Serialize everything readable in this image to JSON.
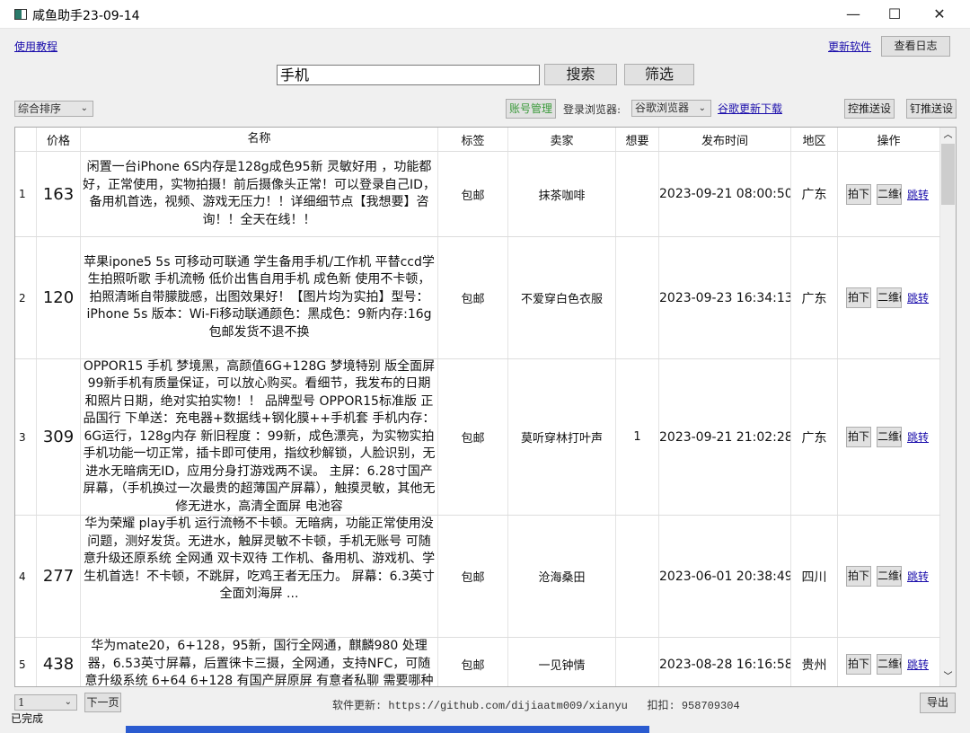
{
  "window": {
    "title": "咸鱼助手23-09-14",
    "minimize": "—",
    "maximize": "☐",
    "close": "✕"
  },
  "toolbar": {
    "tutorial_link": "使用教程",
    "update_link": "更新软件",
    "view_log": "查看日志",
    "search_value": "手机",
    "search_button": "搜索",
    "filter_button": "筛选",
    "sort_select": "综合排序",
    "account_button": "账号管理",
    "browser_label": "登录浏览器:",
    "browser_select": "谷歌浏览器",
    "chrome_link": "谷歌更新下载",
    "push_settings_1": "控推送设",
    "push_settings_2": "钉推送设"
  },
  "table": {
    "headers": [
      "",
      "价格",
      "名称",
      "标签",
      "卖家",
      "想要",
      "发布时间",
      "地区",
      "操作"
    ],
    "action_labels": {
      "buy": "拍下",
      "qr": "二维码",
      "jump": "跳转"
    },
    "rows": [
      {
        "index": "1",
        "price": "163",
        "name": "闲置一台iPhone 6S内存是128g成色95新 灵敏好用 ，功能都好，正常使用，实物拍摄！前后摄像头正常！可以登录自己ID，备用机首选，视频、游戏无压力！！详细细节点【我想要】咨询！！全天在线！！",
        "tag": "包邮",
        "seller": "抹茶咖啡",
        "want": "",
        "time": "2023-09-21 08:00:50",
        "region": "广东"
      },
      {
        "index": "2",
        "price": "120",
        "name": "苹果ipone5 5s 可移动可联通 学生备用手机/工作机 平替ccd学生拍照听歌  手机流畅  低价出售自用手机  成色新 使用不卡顿，拍照清晰自带朦胧感，出图效果好！【图片均为实拍】型号：iPhone  5s 版本：Wi-Fi移动联通颜色：黑成色：9新内存:16g包邮发货不退不换",
        "tag": "包邮",
        "seller": "不爱穿白色衣服",
        "want": "",
        "time": "2023-09-23 16:34:13",
        "region": "广东"
      },
      {
        "index": "3",
        "price": "309",
        "name": "OPPOR15 手机 梦境黑，高颜值6G+128G 梦境特别 版全面屏99新手机有质量保证，可以放心购买。看细节，我发布的日期和照片日期，绝对实拍实物！！     品牌型号 OPPOR15标准版 正品国行        下单送：充电器+数据线+钢化膜++手机套 手机内存：6G运行，128g内存      新旧程度 ：99新，成色漂亮，为实物实拍      手机功能一切正常，插卡即可使用，指纹秒解锁，人脸识别，无进水无暗病无ID，应用分身打游戏两不误。     主屏：6.28寸国产屏幕，（手机换过一次最贵的超薄国产屏幕），触摸灵敏，其他无修无进水，高清全面屏     电池容",
        "tag": "包邮",
        "seller": "莫听穿林打叶声",
        "want": "1",
        "time": "2023-09-21 21:02:28",
        "region": "广东"
      },
      {
        "index": "4",
        "price": "277",
        "name": "华为荣耀 play手机 运行流畅不卡顿。无暗病，功能正常使用没问题，测好发货。无进水，触屏灵敏不卡顿，手机无账号 可随意升级还原系统  全网通  双卡双待  工作机、备用机、游戏机、学生机首选！不卡顿，不跳屏，吃鸡王者无压力。 屏幕：6.3英寸 全面刘海屏 ...",
        "tag": "包邮",
        "seller": "沧海桑田",
        "want": "",
        "time": "2023-06-01 20:38:49",
        "region": "四川"
      },
      {
        "index": "5",
        "price": "438",
        "name": "华为mate20，6+128，95新，国行全网通，麒麟980 处理器，6.53英寸屏幕，后置徕卡三摄，全网通，支持NFC，可随意升级系统 6+64   6+128 有国产屏原屏 有意者私聊 需要哪种",
        "tag": "包邮",
        "seller": "一见钟情",
        "want": "",
        "time": "2023-08-28 16:16:58",
        "region": "贵州"
      }
    ]
  },
  "footer": {
    "page_select": "1",
    "next_page": "下一页",
    "update_info": "软件更新: https://github.com/dijiaatm009/xianyu   扣扣: 958709304",
    "export": "导出",
    "status": "已完成"
  },
  "colors": {
    "link": "#1a0dab",
    "account_button_text": "#3a9a3a"
  }
}
